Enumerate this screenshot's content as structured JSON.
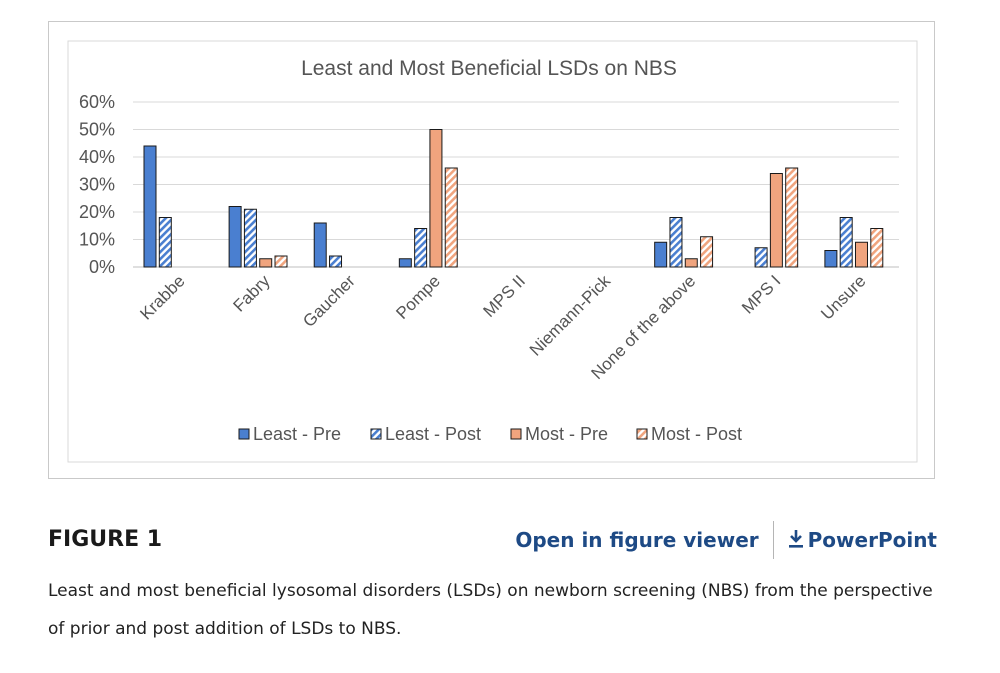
{
  "figure": {
    "label": "FIGURE 1",
    "open_viewer_label": "Open in figure viewer",
    "powerpoint_label": "PowerPoint",
    "download_icon": "download-icon",
    "caption": "Least and most beneficial lysosomal disorders (LSDs) on newborn screening (NBS) from the perspective of prior and post addition of LSDs to NBS.",
    "link_color": "#1e4a85"
  },
  "chart_data": {
    "type": "bar",
    "title": "Least and Most Beneficial LSDs on NBS",
    "xlabel": "",
    "ylabel": "",
    "ylim": [
      0,
      60
    ],
    "yticks": [
      "0%",
      "10%",
      "20%",
      "30%",
      "40%",
      "50%",
      "60%"
    ],
    "ytick_values": [
      0,
      10,
      20,
      30,
      40,
      50,
      60
    ],
    "grid": true,
    "legend_position": "bottom",
    "categories": [
      "Krabbe",
      "Fabry",
      "Gaucher",
      "Pompe",
      "MPS II",
      "Niemann-Pick",
      "None of the above",
      "MPS I",
      "Unsure"
    ],
    "series": [
      {
        "name": "Least - Pre",
        "color": "#4a7fd0",
        "pattern": "solid",
        "values": [
          44,
          22,
          16,
          3,
          0,
          0,
          9,
          0,
          6
        ]
      },
      {
        "name": "Least - Post",
        "color": "#4a7fd0",
        "pattern": "hatched",
        "values": [
          18,
          21,
          4,
          14,
          0,
          0,
          18,
          7,
          18
        ]
      },
      {
        "name": "Most - Pre",
        "color": "#f0a47e",
        "pattern": "solid",
        "values": [
          0,
          3,
          0,
          50,
          0,
          0,
          3,
          34,
          9
        ]
      },
      {
        "name": "Most - Post",
        "color": "#f0a47e",
        "pattern": "hatched",
        "values": [
          0,
          4,
          0,
          36,
          0,
          0,
          11,
          36,
          14
        ]
      }
    ]
  }
}
